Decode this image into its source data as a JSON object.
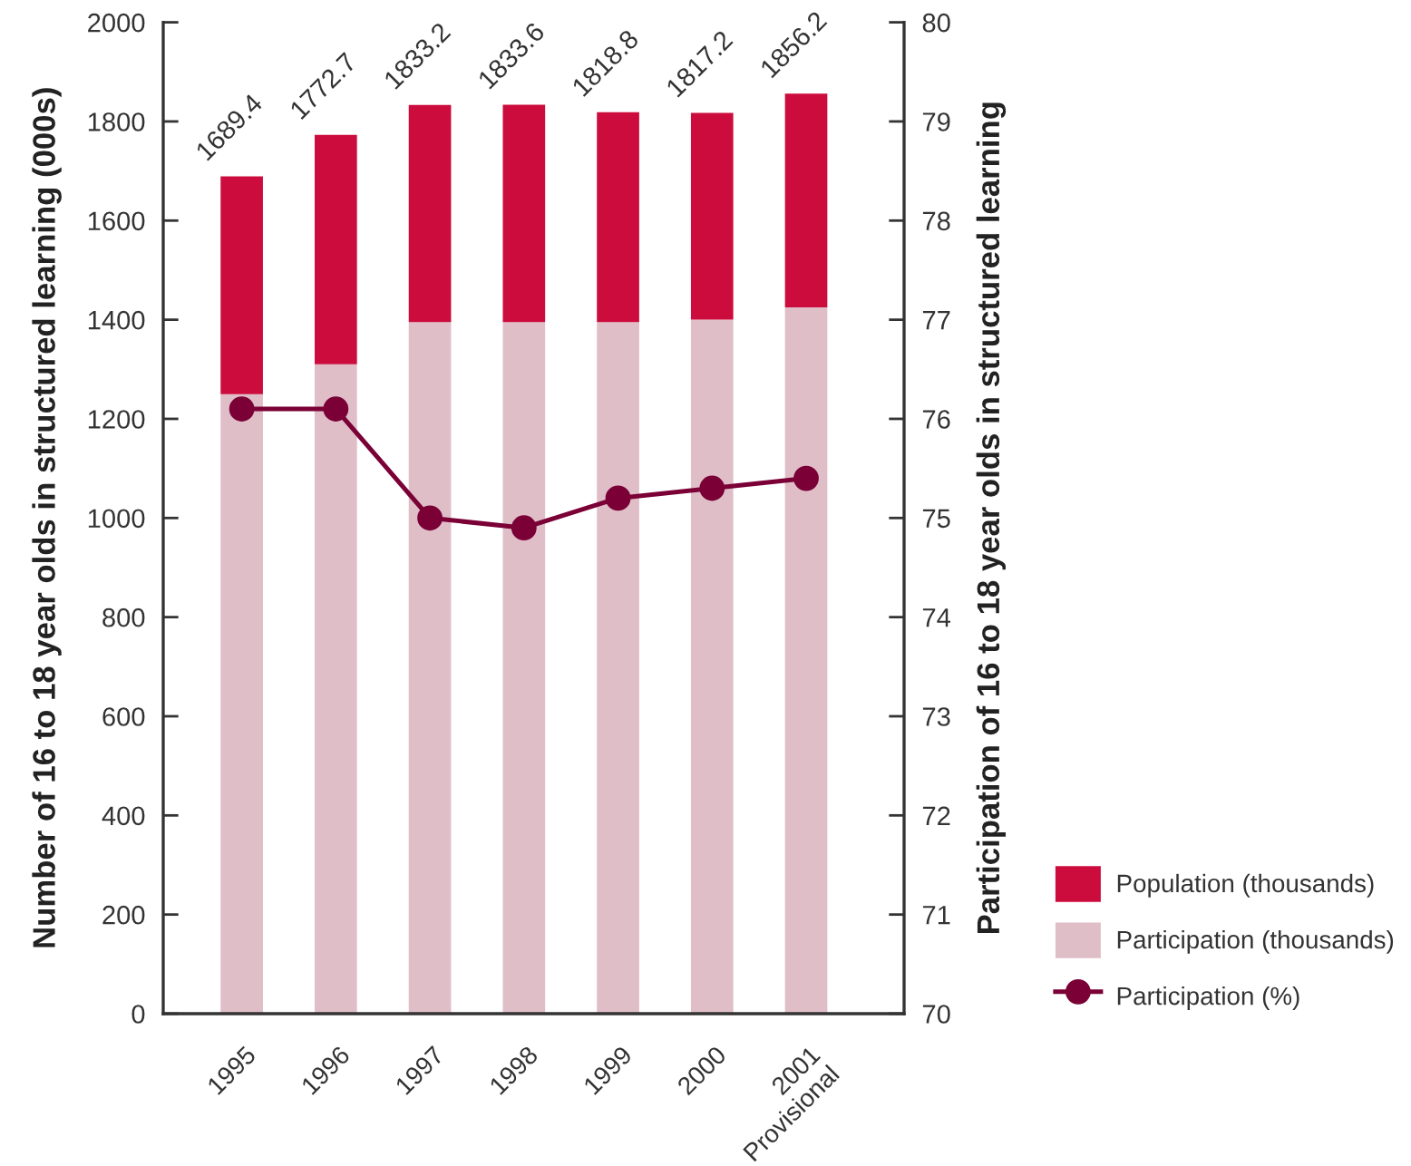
{
  "chart_data": {
    "type": "bar",
    "stacked": true,
    "ylabel": "Number of 16 to 18 year olds in structured learning (000s)",
    "y2label": "Participation of 16 to 18 year olds in structured learning",
    "categories": [
      "1995",
      "1996",
      "1997",
      "1998",
      "1999",
      "2000",
      "2001\nProvisional"
    ],
    "series": [
      {
        "name": "Participation (thousands)",
        "color": "#dfbec8",
        "values": [
          1250,
          1310,
          1395,
          1395,
          1395,
          1400,
          1425
        ]
      },
      {
        "name": "Population (thousands)",
        "color": "#cc0c3c",
        "values": [
          439.4,
          462.7,
          438.2,
          438.6,
          423.8,
          417.2,
          431.2
        ]
      },
      {
        "name": "Participation (%)",
        "type": "line",
        "axis": "y2",
        "color": "#7a0036",
        "marker": "circle",
        "values": [
          76.1,
          76.1,
          75.0,
          74.9,
          75.2,
          75.3,
          75.4
        ]
      }
    ],
    "totals": [
      "1689.4",
      "1772.7",
      "1833.2",
      "1833.6",
      "1818.8",
      "1817.2",
      "1856.2"
    ],
    "ylim": [
      0,
      2000
    ],
    "yticks": [
      0,
      200,
      400,
      600,
      800,
      1000,
      1200,
      1400,
      1600,
      1800,
      2000
    ],
    "y2lim": [
      70,
      80
    ],
    "y2ticks": [
      70,
      71,
      72,
      73,
      74,
      75,
      76,
      77,
      78,
      79,
      80
    ],
    "legend": "bottom right"
  }
}
